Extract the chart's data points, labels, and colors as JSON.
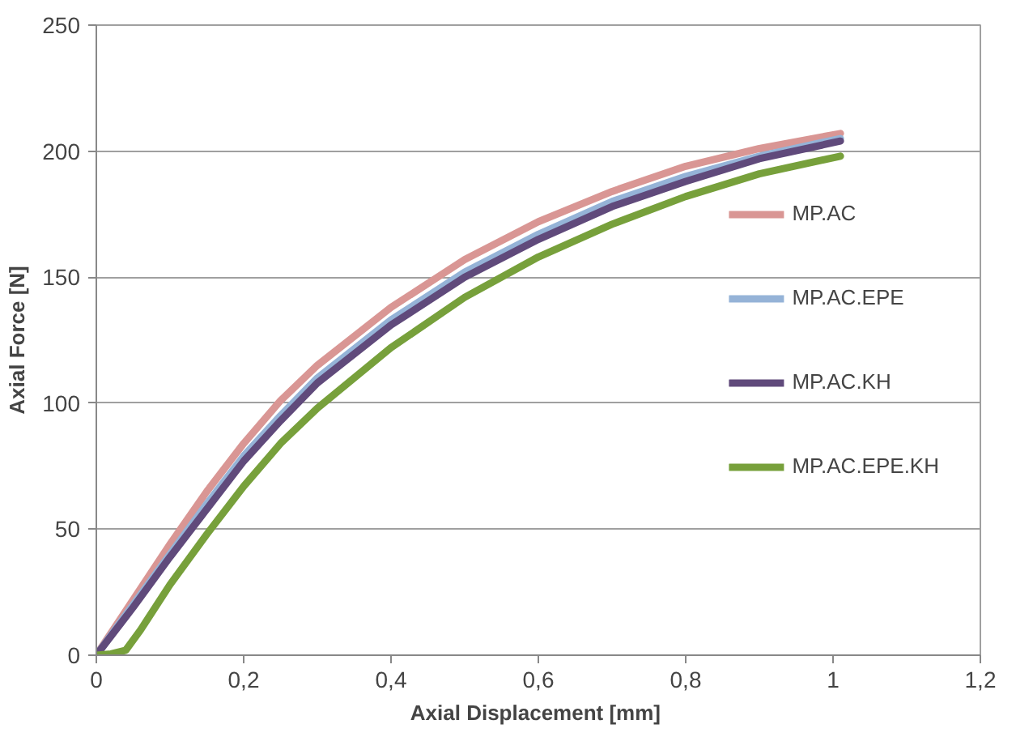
{
  "chart_data": {
    "type": "line",
    "xlabel": "Axial Displacement  [mm]",
    "ylabel": "Axial Force [N]",
    "xlim": [
      0,
      1.2
    ],
    "ylim": [
      0,
      250
    ],
    "xticks": [
      0,
      {
        "value": 0.2,
        "label": "0,2"
      },
      {
        "value": 0.4,
        "label": "0,4"
      },
      {
        "value": 0.6,
        "label": "0,6"
      },
      {
        "value": 0.8,
        "label": "0,8"
      },
      1,
      {
        "value": 1.2,
        "label": "1,2"
      }
    ],
    "yticks": [
      0,
      50,
      100,
      150,
      200,
      250
    ],
    "grid": "y",
    "legend": "right",
    "marker": "none",
    "line_style": "solid",
    "series": [
      {
        "name": "MP.AC",
        "color": "#d99694",
        "x": [
          0,
          0.05,
          0.1,
          0.15,
          0.2,
          0.25,
          0.3,
          0.4,
          0.5,
          0.6,
          0.7,
          0.8,
          0.9,
          1.01
        ],
        "values": [
          0,
          22,
          44,
          65,
          84,
          101,
          115,
          138,
          157,
          172,
          184,
          194,
          201,
          207
        ]
      },
      {
        "name": "MP.AC.EPE",
        "color": "#95b3d7",
        "x": [
          0,
          0.05,
          0.1,
          0.15,
          0.2,
          0.25,
          0.3,
          0.4,
          0.5,
          0.6,
          0.7,
          0.8,
          0.9,
          1.01
        ],
        "values": [
          0,
          20,
          40,
          60,
          79,
          95,
          110,
          133,
          152,
          167,
          180,
          190,
          198,
          205
        ]
      },
      {
        "name": "MP.AC.KH",
        "color": "#604a7b",
        "x": [
          0,
          0.05,
          0.1,
          0.15,
          0.2,
          0.25,
          0.3,
          0.4,
          0.5,
          0.6,
          0.7,
          0.8,
          0.9,
          1.01
        ],
        "values": [
          0,
          19,
          39,
          58,
          77,
          93,
          108,
          131,
          150,
          165,
          178,
          188,
          197,
          204
        ]
      },
      {
        "name": "MP.AC.EPE.KH",
        "color": "#77a03b",
        "x": [
          0,
          0.02,
          0.04,
          0.06,
          0.1,
          0.15,
          0.2,
          0.25,
          0.3,
          0.4,
          0.5,
          0.6,
          0.7,
          0.8,
          0.9,
          1.01
        ],
        "values": [
          0,
          0.5,
          2,
          10,
          28,
          48,
          67,
          84,
          98,
          122,
          142,
          158,
          171,
          182,
          191,
          198
        ]
      }
    ]
  }
}
